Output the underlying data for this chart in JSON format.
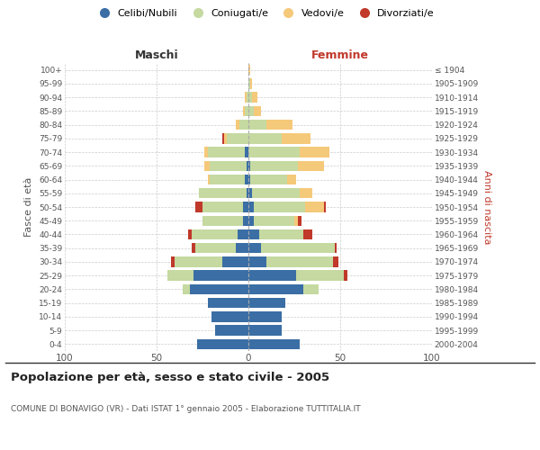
{
  "age_groups": [
    "0-4",
    "5-9",
    "10-14",
    "15-19",
    "20-24",
    "25-29",
    "30-34",
    "35-39",
    "40-44",
    "45-49",
    "50-54",
    "55-59",
    "60-64",
    "65-69",
    "70-74",
    "75-79",
    "80-84",
    "85-89",
    "90-94",
    "95-99",
    "100+"
  ],
  "birth_years": [
    "2000-2004",
    "1995-1999",
    "1990-1994",
    "1985-1989",
    "1980-1984",
    "1975-1979",
    "1970-1974",
    "1965-1969",
    "1960-1964",
    "1955-1959",
    "1950-1954",
    "1945-1949",
    "1940-1944",
    "1935-1939",
    "1930-1934",
    "1925-1929",
    "1920-1924",
    "1915-1919",
    "1910-1914",
    "1905-1909",
    "≤ 1904"
  ],
  "male": {
    "celibi": [
      28,
      18,
      20,
      22,
      32,
      30,
      14,
      7,
      6,
      3,
      3,
      1,
      2,
      1,
      2,
      0,
      0,
      0,
      0,
      0,
      0
    ],
    "coniugati": [
      0,
      0,
      0,
      0,
      4,
      14,
      26,
      22,
      25,
      22,
      22,
      26,
      19,
      20,
      20,
      12,
      5,
      2,
      1,
      0,
      0
    ],
    "vedovi": [
      0,
      0,
      0,
      0,
      0,
      0,
      0,
      0,
      0,
      0,
      0,
      0,
      1,
      3,
      2,
      1,
      2,
      1,
      1,
      0,
      0
    ],
    "divorziati": [
      0,
      0,
      0,
      0,
      0,
      0,
      2,
      2,
      2,
      0,
      4,
      0,
      0,
      0,
      0,
      1,
      0,
      0,
      0,
      0,
      0
    ]
  },
  "female": {
    "nubili": [
      28,
      18,
      18,
      20,
      30,
      26,
      10,
      7,
      6,
      3,
      3,
      2,
      1,
      1,
      0,
      0,
      0,
      0,
      0,
      0,
      0
    ],
    "coniugate": [
      0,
      0,
      0,
      0,
      8,
      26,
      36,
      40,
      24,
      22,
      28,
      26,
      20,
      26,
      28,
      18,
      10,
      3,
      2,
      1,
      0
    ],
    "vedove": [
      0,
      0,
      0,
      0,
      0,
      0,
      0,
      0,
      0,
      2,
      10,
      7,
      5,
      14,
      16,
      16,
      14,
      4,
      3,
      1,
      1
    ],
    "divorziate": [
      0,
      0,
      0,
      0,
      0,
      2,
      3,
      1,
      5,
      2,
      1,
      0,
      0,
      0,
      0,
      0,
      0,
      0,
      0,
      0,
      0
    ]
  },
  "colors": {
    "celibi": "#3a6ea5",
    "coniugati": "#c5d9a0",
    "vedovi": "#f5c97a",
    "divorziati": "#c0392b"
  },
  "xlim": 100,
  "title": "Popolazione per età, sesso e stato civile - 2005",
  "subtitle": "COMUNE DI BONAVIGO (VR) - Dati ISTAT 1° gennaio 2005 - Elaborazione TUTTITALIA.IT",
  "ylabel_left": "Fasce di età",
  "ylabel_right": "Anni di nascita",
  "xlabel_left": "Maschi",
  "xlabel_right": "Femmine",
  "bg_color": "#ffffff",
  "grid_color": "#cccccc",
  "legend_labels": [
    "Celibi/Nubili",
    "Coniugati/e",
    "Vedovi/e",
    "Divorziati/e"
  ]
}
